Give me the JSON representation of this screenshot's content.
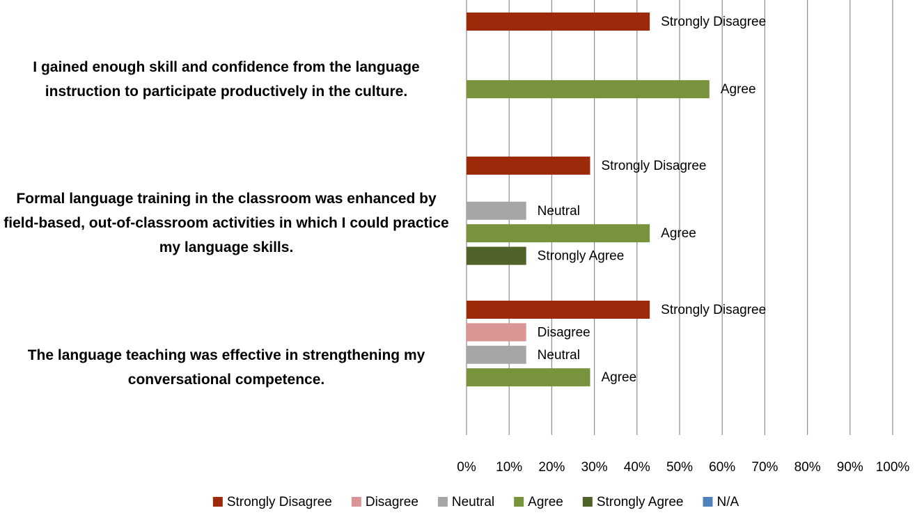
{
  "chart_data": {
    "type": "bar",
    "orientation": "horizontal",
    "categories": [
      "I gained enough skill and confidence from the language instruction to participate productively in the culture.",
      "Formal language training in the classroom was enhanced by field-based, out-of-classroom activities in which I could practice my language skills.",
      "The language teaching was effective in strengthening my conversational competence."
    ],
    "series": [
      {
        "name": "Strongly Disagree",
        "color": "#9c2a0a",
        "values": [
          43,
          29,
          43
        ]
      },
      {
        "name": "Disagree",
        "color": "#d99694",
        "values": [
          null,
          null,
          14
        ]
      },
      {
        "name": "Neutral",
        "color": "#a6a6a6",
        "values": [
          null,
          14,
          14
        ]
      },
      {
        "name": "Agree",
        "color": "#77933c",
        "values": [
          57,
          43,
          29
        ]
      },
      {
        "name": "Strongly Agree",
        "color": "#4f6228",
        "values": [
          null,
          14,
          null
        ]
      },
      {
        "name": "N/A",
        "color": "#4f81bd",
        "values": [
          null,
          null,
          null
        ]
      }
    ],
    "xlim": [
      0,
      100
    ],
    "xticks": [
      {
        "value": 0,
        "label": "0%"
      },
      {
        "value": 10,
        "label": "10%"
      },
      {
        "value": 20,
        "label": "20%"
      },
      {
        "value": 30,
        "label": "30%"
      },
      {
        "value": 40,
        "label": "40%"
      },
      {
        "value": 50,
        "label": "50%"
      },
      {
        "value": 60,
        "label": "60%"
      },
      {
        "value": 70,
        "label": "70%"
      },
      {
        "value": 80,
        "label": "80%"
      },
      {
        "value": 90,
        "label": "90%"
      },
      {
        "value": 100,
        "label": "100%"
      }
    ],
    "grid": true,
    "legend": "bottom"
  }
}
